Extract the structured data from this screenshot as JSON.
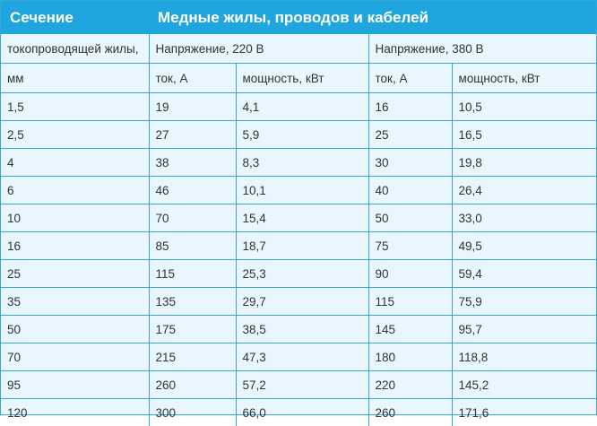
{
  "header": {
    "section_title": "Сечение",
    "main_title": "Медные жилы, проводов и кабелей"
  },
  "subheader": {
    "row1": {
      "col1": "токопроводящей жилы,",
      "voltage220": "Напряжение, 220 В",
      "voltage380": "Напряжение, 380 В"
    },
    "row2": {
      "col1": "мм",
      "current220": "ток, А",
      "power220": "мощность, кВт",
      "current380": "ток, А",
      "power380": "мощность, кВт"
    }
  },
  "rows": [
    [
      "1,5",
      "19",
      "4,1",
      "16",
      "10,5"
    ],
    [
      "2,5",
      "27",
      "5,9",
      "25",
      "16,5"
    ],
    [
      "4",
      "38",
      "8,3",
      "30",
      "19,8"
    ],
    [
      "6",
      "46",
      "10,1",
      "40",
      "26,4"
    ],
    [
      "10",
      "70",
      "15,4",
      "50",
      "33,0"
    ],
    [
      "16",
      "85",
      "18,7",
      "75",
      "49,5"
    ],
    [
      "25",
      "115",
      "25,3",
      "90",
      "59,4"
    ],
    [
      "35",
      "135",
      "29,7",
      "115",
      "75,9"
    ],
    [
      "50",
      "175",
      "38,5",
      "145",
      "95,7"
    ],
    [
      "70",
      "215",
      "47,3",
      "180",
      "118,8"
    ],
    [
      "95",
      "260",
      "57,2",
      "220",
      "145,2"
    ],
    [
      "120",
      "300",
      "66,0",
      "260",
      "171,6"
    ]
  ],
  "colors": {
    "header_bg": "#1fa6df",
    "header_text": "#ffffff",
    "body_bg": "#eaf6fd",
    "border": "#37a8d6",
    "text": "#333333"
  }
}
